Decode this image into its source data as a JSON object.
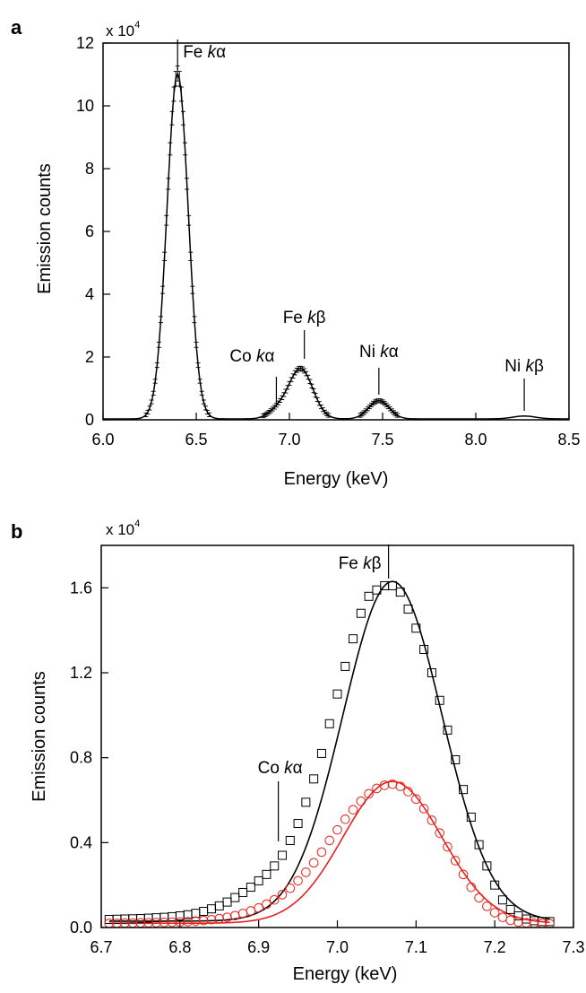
{
  "chart_data": [
    {
      "type": "line",
      "panel_label": "a",
      "xlabel": "Energy (keV)",
      "ylabel": "Emission counts",
      "y_multiplier": {
        "base": "x 10",
        "exp": "4"
      },
      "xlim": [
        6.0,
        8.5
      ],
      "ylim": [
        0,
        12
      ],
      "x_ticks": [
        6.0,
        6.5,
        7.0,
        7.5,
        8.0,
        8.5
      ],
      "x_tick_labels": [
        "6.0",
        "6.5",
        "7.0",
        "7.5",
        "8.0",
        "8.5"
      ],
      "y_ticks": [
        0,
        2,
        4,
        6,
        8,
        10,
        12
      ],
      "y_tick_labels": [
        "0",
        "2",
        "4",
        "6",
        "8",
        "10",
        "12"
      ],
      "peaks": [
        {
          "label_main": "Fe ",
          "label_italic": "k",
          "label_greek": "α",
          "center": 6.4,
          "height": 11.0,
          "sigma": 0.057
        },
        {
          "label_main": "Co ",
          "label_italic": "k",
          "label_greek": "α",
          "center": 6.93,
          "height": 0.22,
          "sigma": 0.05
        },
        {
          "label_main": "Fe ",
          "label_italic": "k",
          "label_greek": "β",
          "center": 7.06,
          "height": 1.6,
          "sigma": 0.065
        },
        {
          "label_main": "Ni ",
          "label_italic": "k",
          "label_greek": "α",
          "center": 7.48,
          "height": 0.58,
          "sigma": 0.055
        },
        {
          "label_main": "Ni ",
          "label_italic": "k",
          "label_greek": "β",
          "center": 8.26,
          "height": 0.09,
          "sigma": 0.06
        }
      ],
      "background": 0.03,
      "series": [
        {
          "style": "line-with-error-bars",
          "color": "#000000",
          "x_start": 6.0,
          "x_end": 8.5,
          "x_step": 0.01
        }
      ]
    },
    {
      "type": "scatter",
      "panel_label": "b",
      "xlabel": "Energy (keV)",
      "ylabel": "Emission counts",
      "y_multiplier": {
        "base": "x 10",
        "exp": "4"
      },
      "xlim": [
        6.7,
        7.3
      ],
      "ylim": [
        0,
        1.8
      ],
      "x_ticks": [
        6.7,
        6.8,
        6.9,
        7.0,
        7.1,
        7.2,
        7.3
      ],
      "x_tick_labels": [
        "6.7",
        "6.8",
        "6.9",
        "7.0",
        "7.1",
        "7.2",
        "7.3"
      ],
      "y_ticks": [
        0,
        0.4,
        0.8,
        1.2,
        1.6
      ],
      "y_tick_labels": [
        "0.0",
        "0.4",
        "0.8",
        "1.2",
        "1.6"
      ],
      "annotations": [
        {
          "label_main": "Fe ",
          "label_italic": "k",
          "label_greek": "β",
          "x": 7.065
        },
        {
          "label_main": "Co ",
          "label_italic": "k",
          "label_greek": "α",
          "x": 6.925
        }
      ],
      "series": [
        {
          "marker": "square",
          "color": "#000000",
          "x": [
            6.71,
            6.72,
            6.73,
            6.74,
            6.75,
            6.76,
            6.77,
            6.78,
            6.79,
            6.8,
            6.81,
            6.82,
            6.83,
            6.84,
            6.85,
            6.86,
            6.87,
            6.88,
            6.89,
            6.9,
            6.91,
            6.92,
            6.93,
            6.94,
            6.95,
            6.96,
            6.97,
            6.98,
            6.99,
            7.0,
            7.01,
            7.02,
            7.03,
            7.04,
            7.05,
            7.06,
            7.07,
            7.08,
            7.09,
            7.1,
            7.11,
            7.12,
            7.13,
            7.14,
            7.15,
            7.16,
            7.17,
            7.18,
            7.19,
            7.2,
            7.21,
            7.22,
            7.23,
            7.24,
            7.25,
            7.26,
            7.27
          ],
          "y": [
            0.038,
            0.039,
            0.04,
            0.041,
            0.042,
            0.044,
            0.046,
            0.048,
            0.051,
            0.055,
            0.06,
            0.067,
            0.076,
            0.088,
            0.102,
            0.12,
            0.141,
            0.165,
            0.19,
            0.22,
            0.25,
            0.29,
            0.34,
            0.41,
            0.49,
            0.59,
            0.7,
            0.82,
            0.96,
            1.1,
            1.23,
            1.36,
            1.48,
            1.56,
            1.59,
            1.61,
            1.61,
            1.58,
            1.5,
            1.41,
            1.31,
            1.2,
            1.07,
            0.93,
            0.79,
            0.65,
            0.52,
            0.39,
            0.29,
            0.2,
            0.13,
            0.085,
            0.055,
            0.04,
            0.032,
            0.028,
            0.028
          ]
        },
        {
          "marker": "circle",
          "color": "#e8211b",
          "x": [
            6.71,
            6.72,
            6.73,
            6.74,
            6.75,
            6.76,
            6.77,
            6.78,
            6.79,
            6.8,
            6.81,
            6.82,
            6.83,
            6.84,
            6.85,
            6.86,
            6.87,
            6.88,
            6.89,
            6.9,
            6.91,
            6.92,
            6.93,
            6.94,
            6.95,
            6.96,
            6.97,
            6.98,
            6.99,
            7.0,
            7.01,
            7.02,
            7.03,
            7.04,
            7.05,
            7.06,
            7.07,
            7.08,
            7.09,
            7.1,
            7.11,
            7.12,
            7.13,
            7.14,
            7.15,
            7.16,
            7.17,
            7.18,
            7.19,
            7.2,
            7.21,
            7.22,
            7.23,
            7.24,
            7.25,
            7.26,
            7.27
          ],
          "y": [
            0.02,
            0.02,
            0.021,
            0.021,
            0.022,
            0.022,
            0.023,
            0.024,
            0.025,
            0.026,
            0.028,
            0.03,
            0.033,
            0.037,
            0.042,
            0.048,
            0.056,
            0.066,
            0.078,
            0.092,
            0.11,
            0.13,
            0.155,
            0.185,
            0.22,
            0.26,
            0.305,
            0.355,
            0.41,
            0.46,
            0.51,
            0.555,
            0.595,
            0.63,
            0.655,
            0.67,
            0.675,
            0.665,
            0.64,
            0.605,
            0.56,
            0.505,
            0.445,
            0.38,
            0.315,
            0.25,
            0.19,
            0.14,
            0.1,
            0.07,
            0.048,
            0.034,
            0.026,
            0.022,
            0.02,
            0.019,
            0.018
          ]
        }
      ],
      "fits": [
        {
          "color": "#000000",
          "center": 7.07,
          "height": 1.6,
          "sigma": 0.063,
          "base": 0.03
        },
        {
          "color": "#e8211b",
          "center": 7.07,
          "height": 0.668,
          "sigma": 0.063,
          "base": 0.02
        }
      ]
    }
  ]
}
